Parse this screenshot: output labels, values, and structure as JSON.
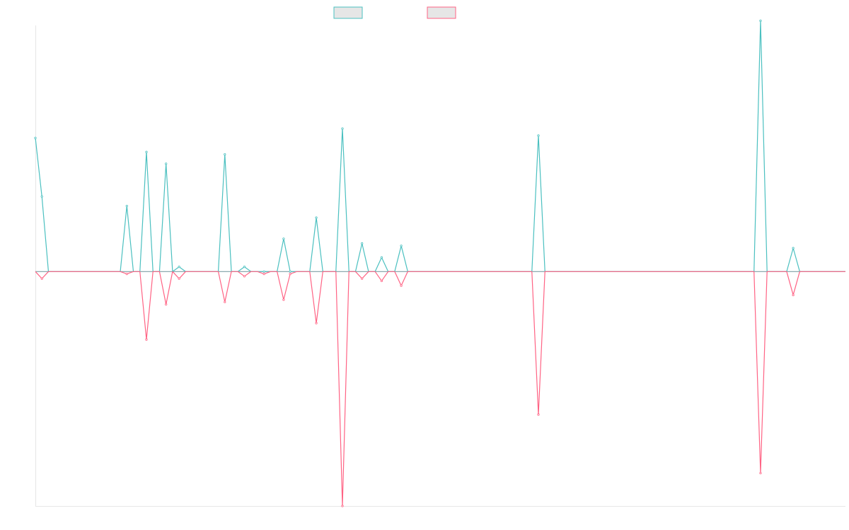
{
  "colors": {
    "series_1": "#4bc0c0",
    "series_2": "#ff6384",
    "legend_fill": "#e6e6e6",
    "axis": "#e6e6e6",
    "zero_line": "#7f9fa6"
  },
  "chart_data": {
    "type": "line",
    "title": "",
    "xlabel": "",
    "ylabel": "",
    "grid": false,
    "legend_position": "top",
    "x_count": 125,
    "xlim": [
      0,
      124
    ],
    "ylim": [
      -100,
      105
    ],
    "series": [
      {
        "name": "",
        "color": "#4bc0c0",
        "spikes": [
          [
            0,
            57
          ],
          [
            1,
            32
          ],
          [
            14,
            28
          ],
          [
            17,
            51
          ],
          [
            20,
            46
          ],
          [
            22,
            2
          ],
          [
            29,
            50
          ],
          [
            32,
            2
          ],
          [
            35,
            0
          ],
          [
            38,
            14
          ],
          [
            39,
            0
          ],
          [
            43,
            23
          ],
          [
            47,
            61
          ],
          [
            50,
            12
          ],
          [
            53,
            6
          ],
          [
            56,
            11
          ],
          [
            77,
            58
          ],
          [
            111,
            107
          ],
          [
            116,
            10
          ]
        ]
      },
      {
        "name": "",
        "color": "#ff6384",
        "spikes": [
          [
            1,
            -3
          ],
          [
            14,
            -1
          ],
          [
            17,
            -29
          ],
          [
            20,
            -14
          ],
          [
            22,
            -3
          ],
          [
            29,
            -13
          ],
          [
            32,
            -2
          ],
          [
            35,
            -1
          ],
          [
            38,
            -12
          ],
          [
            39,
            -1
          ],
          [
            43,
            -22
          ],
          [
            47,
            -100
          ],
          [
            50,
            -3
          ],
          [
            53,
            -4
          ],
          [
            56,
            -6
          ],
          [
            77,
            -61
          ],
          [
            111,
            -86
          ],
          [
            116,
            -10
          ]
        ]
      }
    ]
  }
}
